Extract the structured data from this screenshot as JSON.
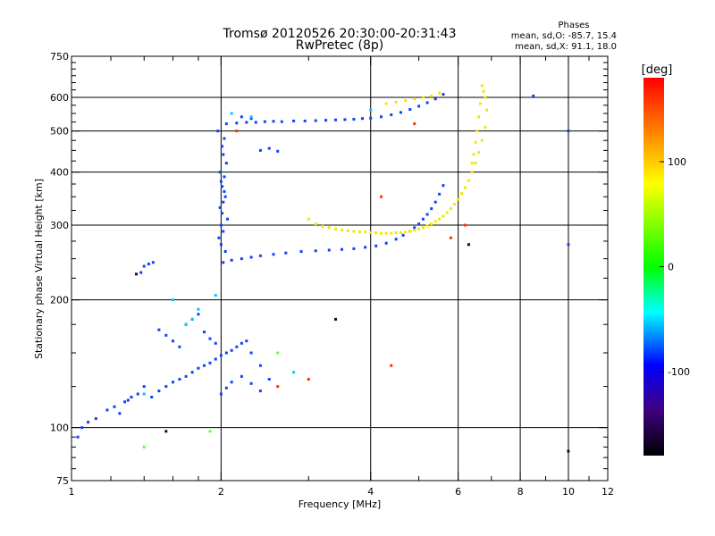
{
  "chart_data": {
    "type": "scatter",
    "title": "Tromsø 20120526 20:30:00-20:31:43",
    "subtitle": "RwPretec (8p)",
    "xlabel": "Frequency [MHz]",
    "ylabel": "Stationary phase Virtual Height [km]",
    "x_scale": "log",
    "y_scale": "log",
    "xlim": [
      1,
      12
    ],
    "ylim": [
      75,
      750
    ],
    "x_major_ticks": [
      1,
      2,
      4,
      6,
      8,
      10,
      12
    ],
    "x_minor_ticks": [
      1.2,
      1.4,
      1.6,
      1.8,
      3,
      5,
      7,
      9,
      11
    ],
    "y_ticks": [
      75,
      100,
      200,
      300,
      400,
      500,
      600,
      750
    ],
    "y_minor_ticks": [
      80,
      85,
      90,
      95,
      125,
      150,
      175,
      225,
      250,
      275,
      325,
      350,
      375,
      425,
      450,
      475,
      525,
      550,
      575,
      625,
      650,
      675,
      700,
      725
    ],
    "grid_x": [
      2,
      4,
      6,
      8,
      10
    ],
    "grid_y": [
      100,
      200,
      300,
      400,
      500,
      600
    ],
    "stats": {
      "header": "Phases",
      "line1": "mean, sd,O: -85.7, 15.4",
      "line2": "mean, sd,X:  91.1, 18.0"
    },
    "colorbar": {
      "unit_label": "[deg]",
      "range": [
        -180,
        180
      ],
      "ticks": [
        100,
        0,
        -100
      ],
      "colors": [
        "#ff0000",
        "#ff8000",
        "#ffff00",
        "#00ff00",
        "#00ffff",
        "#0000ff",
        "#400080",
        "#000000"
      ]
    },
    "series": [
      {
        "phase": -95,
        "color": "#1040ff",
        "x": [
          2.02,
          2.1,
          2.2,
          2.3,
          2.4,
          2.55,
          2.7,
          2.9,
          3.1,
          3.3,
          3.5,
          3.7,
          3.9,
          4.1,
          4.3,
          4.5,
          4.65,
          4.8,
          4.9,
          5.0,
          5.1,
          5.2,
          5.3,
          5.4,
          5.5,
          5.6,
          2.05,
          2.15,
          2.25,
          2.35,
          2.45,
          2.55,
          2.65,
          2.8,
          2.95,
          3.1,
          3.25,
          3.4,
          3.55,
          3.7,
          3.85,
          4.0,
          4.2,
          4.4,
          4.6,
          4.8,
          5.0,
          5.2,
          5.4,
          5.6,
          2.0,
          2.01,
          2.02,
          2.03,
          1.98,
          2.04,
          2.0,
          1.99,
          2.05,
          2.02,
          2.01,
          2.03,
          1.97,
          2.06,
          2.02,
          2.0,
          1.99,
          2.04,
          2.01,
          2.03,
          1.45,
          1.5,
          1.55,
          1.6,
          1.65,
          1.7,
          1.75,
          1.8,
          1.85,
          1.9,
          1.95,
          2.0,
          2.05,
          2.1,
          2.15,
          2.2,
          2.25,
          2.3,
          2.4,
          2.5,
          1.5,
          1.55,
          1.6,
          1.65,
          1.7,
          1.75,
          1.8,
          1.85,
          1.9,
          1.95,
          2.0,
          2.05,
          2.1,
          2.2,
          2.3,
          2.4,
          1.03,
          1.05,
          1.08,
          1.12,
          1.18,
          1.22,
          1.28,
          1.32,
          1.36,
          1.4,
          1.3,
          1.25,
          1.4,
          1.43,
          1.46,
          1.38,
          2.4,
          2.5,
          2.6,
          2.2,
          2.3,
          10.0,
          10.0,
          8.5
        ],
        "y": [
          245,
          248,
          250,
          252,
          254,
          256,
          258,
          260,
          261,
          262,
          263,
          264,
          266,
          268,
          272,
          278,
          284,
          290,
          296,
          302,
          310,
          318,
          328,
          340,
          355,
          372,
          520,
          522,
          524,
          524,
          526,
          527,
          526,
          528,
          528,
          529,
          530,
          531,
          532,
          533,
          535,
          536,
          540,
          546,
          553,
          562,
          572,
          583,
          595,
          610,
          300,
          320,
          340,
          360,
          280,
          260,
          380,
          400,
          420,
          440,
          460,
          480,
          500,
          310,
          290,
          270,
          330,
          350,
          370,
          390,
          118,
          122,
          125,
          128,
          130,
          132,
          135,
          138,
          140,
          142,
          145,
          148,
          150,
          152,
          155,
          158,
          160,
          150,
          140,
          130,
          170,
          165,
          160,
          155,
          175,
          180,
          185,
          168,
          162,
          158,
          120,
          124,
          128,
          132,
          127,
          122,
          95,
          100,
          103,
          105,
          110,
          112,
          115,
          118,
          120,
          125,
          116,
          108,
          240,
          243,
          245,
          232,
          450,
          455,
          448,
          540,
          535,
          500,
          270,
          605
        ]
      },
      {
        "phase": 95,
        "color": "#f0e800",
        "x": [
          3.0,
          3.1,
          3.2,
          3.3,
          3.4,
          3.5,
          3.6,
          3.7,
          3.8,
          3.9,
          4.0,
          4.1,
          4.2,
          4.3,
          4.4,
          4.5,
          4.6,
          4.7,
          4.8,
          4.9,
          5.0,
          5.1,
          5.2,
          5.3,
          5.4,
          5.5,
          5.6,
          5.7,
          5.8,
          5.9,
          6.0,
          6.1,
          6.2,
          6.3,
          6.4,
          6.5,
          6.6,
          6.7,
          6.8,
          6.85,
          6.8,
          6.75,
          6.7,
          6.65,
          6.6,
          6.55,
          6.5,
          6.45,
          6.4,
          4.3,
          4.5,
          4.7,
          4.9,
          5.1,
          5.3,
          5.5
        ],
        "y": [
          310,
          302,
          298,
          296,
          294,
          292,
          291,
          290,
          289,
          289,
          288,
          288,
          287,
          287,
          287,
          288,
          288,
          289,
          290,
          292,
          294,
          296,
          299,
          302,
          306,
          310,
          315,
          321,
          328,
          336,
          345,
          356,
          368,
          382,
          400,
          420,
          445,
          475,
          510,
          560,
          600,
          620,
          640,
          580,
          540,
          500,
          470,
          440,
          420,
          580,
          585,
          590,
          595,
          600,
          605,
          615
        ]
      },
      {
        "phase": 160,
        "color": "#ff3000",
        "x": [
          2.15,
          2.6,
          4.4,
          4.9,
          5.8,
          3.0,
          4.2,
          6.2
        ],
        "y": [
          500,
          125,
          140,
          520,
          280,
          130,
          350,
          300
        ]
      },
      {
        "phase": -20,
        "color": "#00c8ff",
        "x": [
          1.7,
          1.8,
          1.95,
          2.1,
          2.3,
          1.6,
          1.75,
          2.8,
          4.0,
          1.4
        ],
        "y": [
          175,
          190,
          205,
          550,
          540,
          200,
          180,
          135,
          560,
          120
        ]
      },
      {
        "phase": -150,
        "color": "#200030",
        "x": [
          3.4,
          1.55,
          10.0,
          6.3,
          1.35
        ],
        "y": [
          180,
          98,
          88,
          270,
          230
        ]
      },
      {
        "phase": 30,
        "color": "#60ff40",
        "x": [
          1.4,
          1.9,
          2.6
        ],
        "y": [
          90,
          98,
          150
        ]
      }
    ]
  }
}
